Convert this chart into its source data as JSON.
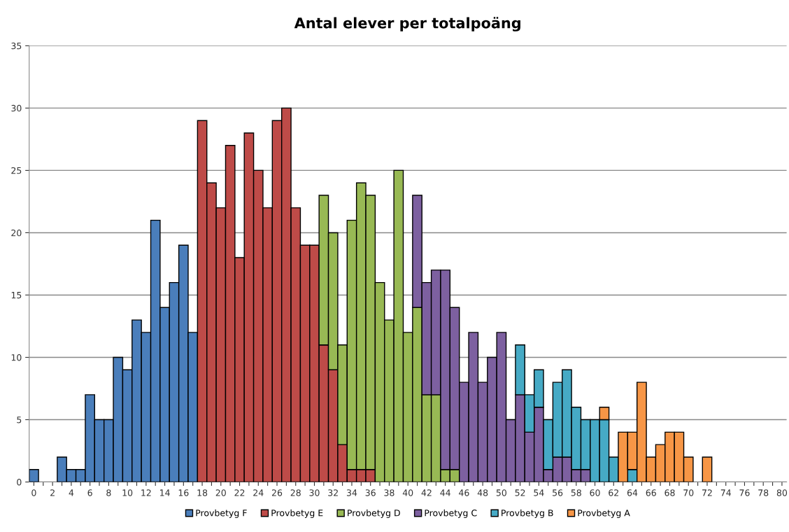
{
  "chart_data": {
    "type": "bar",
    "stacked": true,
    "title": "Antal elever per totalpoäng",
    "categories": [
      "0",
      null,
      "2",
      null,
      "4",
      null,
      "6",
      null,
      "8",
      null,
      "10",
      null,
      "12",
      null,
      "14",
      null,
      "16",
      null,
      "18",
      null,
      "20",
      null,
      "22",
      null,
      "24",
      null,
      "26",
      null,
      "28",
      null,
      "30",
      null,
      "32",
      null,
      "34",
      null,
      "36",
      null,
      "38",
      null,
      "40",
      null,
      "42",
      null,
      "44",
      null,
      "46",
      null,
      "48",
      null,
      "50",
      null,
      "52",
      null,
      "54",
      null,
      "56",
      null,
      "58",
      null,
      "60",
      null,
      "62",
      null,
      "64",
      null,
      "66",
      null,
      "68",
      null,
      "70",
      null,
      "72",
      null,
      "74",
      null,
      "76",
      null,
      "78",
      null,
      "80"
    ],
    "ylim": [
      0,
      35
    ],
    "yticks": [
      0,
      5,
      10,
      15,
      20,
      25,
      30,
      35
    ],
    "grid": "y",
    "legend": "bottom",
    "series": [
      {
        "name": "Provbetyg F",
        "color": "#4a7ebb",
        "values": [
          1,
          null,
          null,
          2,
          1,
          1,
          7,
          5,
          5,
          10,
          9,
          13,
          12,
          21,
          14,
          16,
          19,
          12,
          null,
          null,
          null,
          null,
          null,
          null,
          null,
          null,
          null,
          null,
          null,
          null,
          null,
          null,
          null,
          null,
          null,
          null,
          null,
          null,
          null,
          null,
          null,
          null,
          null,
          null,
          null,
          null,
          null,
          null,
          null,
          null,
          null,
          null,
          null,
          null,
          null,
          null,
          null,
          null,
          null,
          null,
          null,
          null,
          null,
          null,
          null,
          null,
          null,
          null,
          null,
          null,
          null,
          null,
          null,
          null,
          null,
          null,
          null,
          null,
          null,
          null,
          null
        ]
      },
      {
        "name": "Provbetyg E",
        "color": "#be4b48",
        "values": [
          null,
          null,
          null,
          null,
          null,
          null,
          null,
          null,
          null,
          null,
          null,
          null,
          null,
          null,
          null,
          null,
          null,
          null,
          29,
          24,
          22,
          27,
          18,
          28,
          25,
          22,
          29,
          30,
          22,
          19,
          19,
          11,
          9,
          3,
          1,
          1,
          1,
          null,
          null,
          null,
          null,
          null,
          null,
          null,
          null,
          null,
          null,
          null,
          null,
          null,
          null,
          null,
          null,
          null,
          null,
          null,
          null,
          null,
          null,
          null,
          null,
          null,
          null,
          null,
          null,
          null,
          null,
          null,
          null,
          null,
          null,
          null,
          null,
          null,
          null,
          null,
          null,
          null,
          null,
          null,
          null
        ]
      },
      {
        "name": "Provbetyg D",
        "color": "#98b954",
        "values": [
          null,
          null,
          null,
          null,
          null,
          null,
          null,
          null,
          null,
          null,
          null,
          null,
          null,
          null,
          null,
          null,
          null,
          null,
          null,
          null,
          null,
          null,
          null,
          null,
          null,
          null,
          null,
          null,
          null,
          null,
          null,
          12,
          11,
          8,
          20,
          23,
          22,
          16,
          13,
          25,
          12,
          14,
          7,
          7,
          1,
          1,
          null,
          null,
          null,
          null,
          null,
          null,
          null,
          null,
          null,
          null,
          null,
          null,
          null,
          null,
          null,
          null,
          null,
          null,
          null,
          null,
          null,
          null,
          null,
          null,
          null,
          null,
          null,
          null,
          null,
          null,
          null,
          null,
          null,
          null,
          null
        ]
      },
      {
        "name": "Provbetyg C",
        "color": "#7d60a0",
        "values": [
          null,
          null,
          null,
          null,
          null,
          null,
          null,
          null,
          null,
          null,
          null,
          null,
          null,
          null,
          null,
          null,
          null,
          null,
          null,
          null,
          null,
          null,
          null,
          null,
          null,
          null,
          null,
          null,
          null,
          null,
          null,
          null,
          null,
          null,
          null,
          null,
          null,
          null,
          null,
          null,
          null,
          9,
          9,
          10,
          16,
          13,
          8,
          12,
          8,
          10,
          12,
          5,
          7,
          4,
          6,
          1,
          2,
          2,
          1,
          1,
          null,
          null,
          null,
          null,
          null,
          null,
          null,
          null,
          null,
          null,
          null,
          null,
          null,
          null,
          null,
          null,
          null,
          null,
          null,
          null,
          null
        ]
      },
      {
        "name": "Provbetyg B",
        "color": "#46aac5",
        "values": [
          null,
          null,
          null,
          null,
          null,
          null,
          null,
          null,
          null,
          null,
          null,
          null,
          null,
          null,
          null,
          null,
          null,
          null,
          null,
          null,
          null,
          null,
          null,
          null,
          null,
          null,
          null,
          null,
          null,
          null,
          null,
          null,
          null,
          null,
          null,
          null,
          null,
          null,
          null,
          null,
          null,
          null,
          null,
          null,
          null,
          null,
          null,
          null,
          null,
          null,
          null,
          null,
          4,
          3,
          3,
          4,
          6,
          7,
          5,
          4,
          5,
          5,
          2,
          null,
          1,
          null,
          null,
          null,
          null,
          null,
          null,
          null,
          null,
          null,
          null,
          null,
          null,
          null,
          null,
          null,
          null
        ]
      },
      {
        "name": "Provbetyg A",
        "color": "#f79646",
        "values": [
          null,
          null,
          null,
          null,
          null,
          null,
          null,
          null,
          null,
          null,
          null,
          null,
          null,
          null,
          null,
          null,
          null,
          null,
          null,
          null,
          null,
          null,
          null,
          null,
          null,
          null,
          null,
          null,
          null,
          null,
          null,
          null,
          null,
          null,
          null,
          null,
          null,
          null,
          null,
          null,
          null,
          null,
          null,
          null,
          null,
          null,
          null,
          null,
          null,
          null,
          null,
          null,
          null,
          null,
          null,
          null,
          null,
          null,
          null,
          null,
          null,
          1,
          null,
          4,
          3,
          8,
          2,
          3,
          4,
          4,
          2,
          null,
          2,
          null,
          null,
          null,
          null,
          null,
          null,
          null,
          null
        ]
      }
    ]
  }
}
